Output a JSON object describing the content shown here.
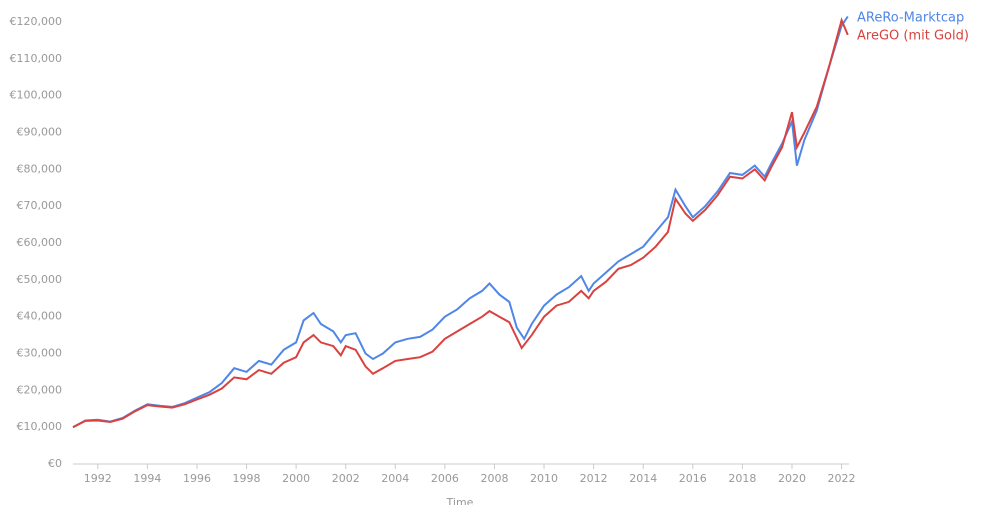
{
  "chart_data": {
    "type": "line",
    "x_label": "Time",
    "xlim": [
      1991,
      2022.3
    ],
    "xticks": [
      1992,
      1994,
      1996,
      1998,
      2000,
      2002,
      2004,
      2006,
      2008,
      2010,
      2012,
      2014,
      2016,
      2018,
      2020,
      2022
    ],
    "ylim": [
      0,
      120000
    ],
    "yticks": [
      {
        "value": 0,
        "label": "€0"
      },
      {
        "value": 10000,
        "label": "€10,000"
      },
      {
        "value": 20000,
        "label": "€20,000"
      },
      {
        "value": 30000,
        "label": "€30,000"
      },
      {
        "value": 40000,
        "label": "€40,000"
      },
      {
        "value": 50000,
        "label": "€50,000"
      },
      {
        "value": 60000,
        "label": "€60,000"
      },
      {
        "value": 70000,
        "label": "€70,000"
      },
      {
        "value": 80000,
        "label": "€80,000"
      },
      {
        "value": 90000,
        "label": "€90,000"
      },
      {
        "value": 100000,
        "label": "€100,000"
      },
      {
        "value": 110000,
        "label": "€110,000"
      },
      {
        "value": 120000,
        "label": "€120,000"
      }
    ],
    "series": [
      {
        "name": "AReRo-Marktcap",
        "color": "#4f86e8",
        "x": [
          1991.0,
          1991.5,
          1992,
          1992.5,
          1993,
          1993.5,
          1994,
          1994.5,
          1995,
          1995.5,
          1996,
          1996.5,
          1997,
          1997.5,
          1998,
          1998.5,
          1999,
          1999.5,
          2000,
          2000.3,
          2000.7,
          2001,
          2001.5,
          2001.8,
          2002,
          2002.4,
          2002.8,
          2003.1,
          2003.5,
          2004,
          2004.5,
          2005,
          2005.5,
          2006,
          2006.5,
          2007,
          2007.5,
          2007.8,
          2008.2,
          2008.6,
          2008.9,
          2009.2,
          2009.5,
          2010,
          2010.5,
          2011,
          2011.5,
          2011.8,
          2012,
          2012.5,
          2013,
          2013.5,
          2014,
          2014.5,
          2015,
          2015.3,
          2015.7,
          2016,
          2016.5,
          2017,
          2017.5,
          2018,
          2018.5,
          2018.9,
          2019.2,
          2019.6,
          2020,
          2020.2,
          2020.5,
          2021,
          2021.5,
          2022,
          2022.25
        ],
        "values": [
          10000,
          11800,
          12000,
          11500,
          12500,
          14500,
          16200,
          15800,
          15500,
          16500,
          18000,
          19500,
          22000,
          26000,
          25000,
          28000,
          27000,
          31000,
          33000,
          39000,
          41000,
          38000,
          36000,
          33000,
          35000,
          35500,
          30000,
          28500,
          30000,
          33000,
          34000,
          34500,
          36500,
          40000,
          42000,
          45000,
          47000,
          49000,
          46000,
          44000,
          37000,
          34000,
          38000,
          43000,
          46000,
          48000,
          51000,
          47000,
          49000,
          52000,
          55000,
          57000,
          59000,
          63000,
          67000,
          74500,
          70000,
          67000,
          70000,
          74000,
          79000,
          78500,
          81000,
          78000,
          82000,
          87000,
          93000,
          81000,
          88000,
          96000,
          108000,
          119000,
          121500
        ]
      },
      {
        "name": "AreGO (mit Gold)",
        "color": "#d9423f",
        "x": [
          1991.0,
          1991.5,
          1992,
          1992.5,
          1993,
          1993.5,
          1994,
          1994.5,
          1995,
          1995.5,
          1996,
          1996.5,
          1997,
          1997.5,
          1998,
          1998.5,
          1999,
          1999.5,
          2000,
          2000.3,
          2000.7,
          2001,
          2001.5,
          2001.8,
          2002,
          2002.4,
          2002.8,
          2003.1,
          2003.5,
          2004,
          2004.5,
          2005,
          2005.5,
          2006,
          2006.5,
          2007,
          2007.5,
          2007.8,
          2008.2,
          2008.6,
          2009.1,
          2009.5,
          2010,
          2010.5,
          2011,
          2011.5,
          2011.8,
          2012,
          2012.5,
          2013,
          2013.5,
          2014,
          2014.5,
          2015,
          2015.3,
          2015.7,
          2016,
          2016.5,
          2017,
          2017.5,
          2018,
          2018.5,
          2018.9,
          2019.2,
          2019.6,
          2020,
          2020.2,
          2020.5,
          2021,
          2021.5,
          2022,
          2022.25
        ],
        "values": [
          10000,
          11700,
          11800,
          11400,
          12300,
          14300,
          16000,
          15600,
          15300,
          16200,
          17500,
          18800,
          20500,
          23500,
          23000,
          25500,
          24500,
          27500,
          29000,
          33000,
          35000,
          33000,
          32000,
          29500,
          32000,
          31000,
          26500,
          24500,
          26000,
          28000,
          28500,
          29000,
          30500,
          34000,
          36000,
          38000,
          40000,
          41500,
          40000,
          38500,
          31500,
          35000,
          40000,
          43000,
          44000,
          47000,
          45000,
          47000,
          49500,
          53000,
          54000,
          56000,
          59000,
          63000,
          72000,
          68000,
          66000,
          69000,
          73000,
          78000,
          77500,
          80000,
          77000,
          81000,
          86000,
          95500,
          86000,
          90000,
          97000,
          108000,
          120500,
          116500
        ]
      }
    ]
  }
}
